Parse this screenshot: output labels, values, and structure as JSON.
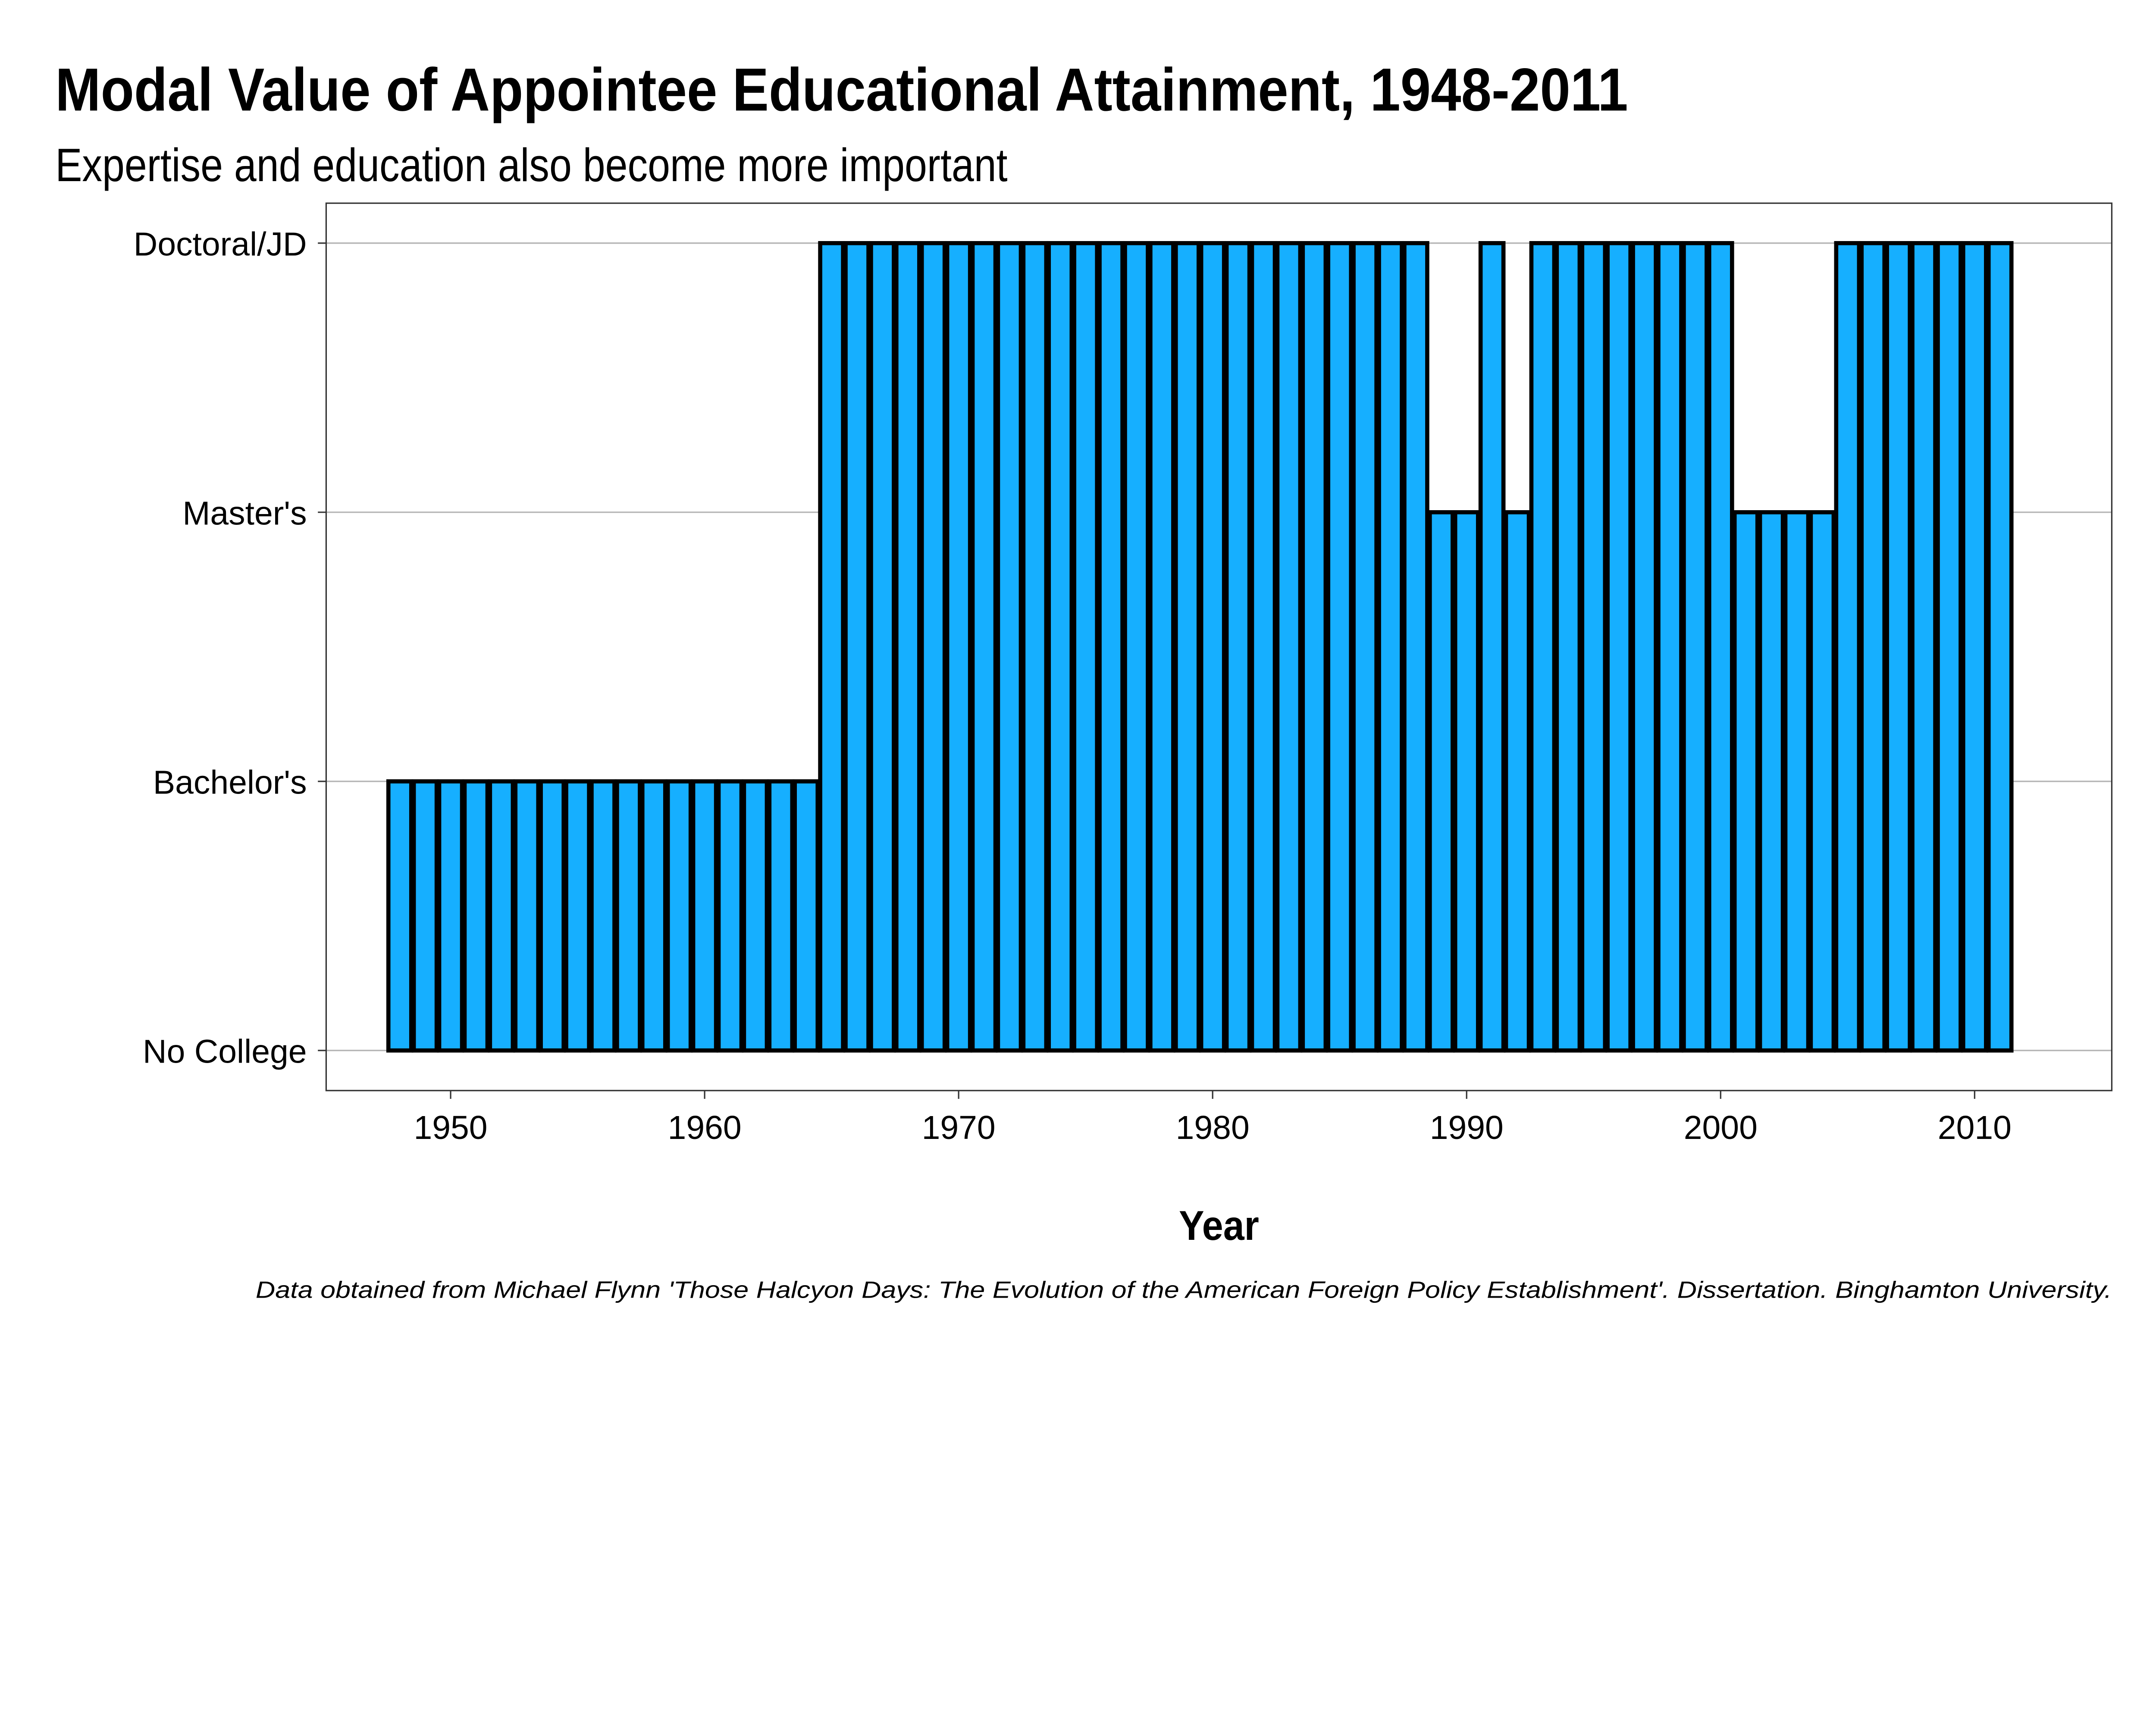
{
  "chart_data": {
    "type": "bar",
    "title": "Modal Value of Appointee Educational Attainment, 1948-2011",
    "subtitle": "Expertise and education also become more important",
    "xlabel": "Year",
    "ylabel": "",
    "caption": "Data obtained from Michael Flynn 'Those Halcyon Days: The Evolution of the American Foreign Policy Establishment'. Dissertation. Binghamton University.",
    "y_levels": [
      "No College",
      "Bachelor's",
      "Master's",
      "Doctoral/JD"
    ],
    "x_ticks": [
      1950,
      1960,
      1970,
      1980,
      1990,
      2000,
      2010
    ],
    "xlim": [
      1945.1,
      2015.4
    ],
    "grid": true,
    "bar_color": "#16AFFF",
    "outline_color": "#000000",
    "categories": [
      1948,
      1949,
      1950,
      1951,
      1952,
      1953,
      1954,
      1955,
      1956,
      1957,
      1958,
      1959,
      1960,
      1961,
      1962,
      1963,
      1964,
      1965,
      1966,
      1967,
      1968,
      1969,
      1970,
      1971,
      1972,
      1973,
      1974,
      1975,
      1976,
      1977,
      1978,
      1979,
      1980,
      1981,
      1982,
      1983,
      1984,
      1985,
      1986,
      1987,
      1988,
      1989,
      1990,
      1991,
      1992,
      1993,
      1994,
      1995,
      1996,
      1997,
      1998,
      1999,
      2000,
      2001,
      2002,
      2003,
      2004,
      2005,
      2006,
      2007,
      2008,
      2009,
      2010,
      2011
    ],
    "values": [
      "Bachelor's",
      "Bachelor's",
      "Bachelor's",
      "Bachelor's",
      "Bachelor's",
      "Bachelor's",
      "Bachelor's",
      "Bachelor's",
      "Bachelor's",
      "Bachelor's",
      "Bachelor's",
      "Bachelor's",
      "Bachelor's",
      "Bachelor's",
      "Bachelor's",
      "Bachelor's",
      "Bachelor's",
      "Doctoral/JD",
      "Doctoral/JD",
      "Doctoral/JD",
      "Doctoral/JD",
      "Doctoral/JD",
      "Doctoral/JD",
      "Doctoral/JD",
      "Doctoral/JD",
      "Doctoral/JD",
      "Doctoral/JD",
      "Doctoral/JD",
      "Doctoral/JD",
      "Doctoral/JD",
      "Doctoral/JD",
      "Doctoral/JD",
      "Doctoral/JD",
      "Doctoral/JD",
      "Doctoral/JD",
      "Doctoral/JD",
      "Doctoral/JD",
      "Doctoral/JD",
      "Doctoral/JD",
      "Doctoral/JD",
      "Doctoral/JD",
      "Master's",
      "Master's",
      "Doctoral/JD",
      "Master's",
      "Doctoral/JD",
      "Doctoral/JD",
      "Doctoral/JD",
      "Doctoral/JD",
      "Doctoral/JD",
      "Doctoral/JD",
      "Doctoral/JD",
      "Doctoral/JD",
      "Master's",
      "Master's",
      "Master's",
      "Master's",
      "Doctoral/JD",
      "Doctoral/JD",
      "Doctoral/JD",
      "Doctoral/JD",
      "Doctoral/JD",
      "Doctoral/JD",
      "Doctoral/JD"
    ]
  }
}
